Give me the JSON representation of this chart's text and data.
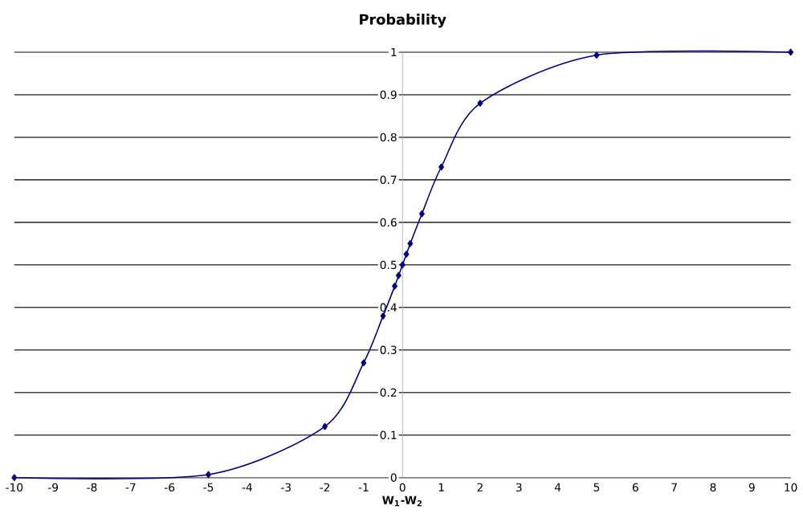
{
  "chart_data": {
    "type": "line",
    "title": "**Probability**",
    "xlabel": "**W$_{1}$-W$_{2}$**",
    "x": [
      -10,
      -5,
      -2,
      -1,
      -0.5,
      -0.2,
      -0.1,
      0,
      0.1,
      0.2,
      0.5,
      1,
      2,
      5,
      10
    ],
    "series": [
      {
        "color": "#000080",
        "values": [
          0,
          0.007,
          0.12,
          0.27,
          0.38,
          0.45,
          0.475,
          0.5,
          0.525,
          0.55,
          0.62,
          0.73,
          0.88,
          0.993,
          1
        ]
      }
    ],
    "xlim": [
      -10,
      10
    ],
    "ylim": [
      0,
      1
    ],
    "xticks": [
      -10,
      -9,
      -8,
      -7,
      -6,
      -5,
      -4,
      -3,
      -2,
      -1,
      0,
      1,
      2,
      3,
      4,
      5,
      6,
      7,
      8,
      9,
      10
    ],
    "yticks": [
      0,
      0.1,
      0.2,
      0.3,
      0.4,
      0.5,
      0.6,
      0.7,
      0.8,
      0.9,
      1
    ],
    "grid": "y",
    "marker": "diamond",
    "line_style": "solid"
  }
}
